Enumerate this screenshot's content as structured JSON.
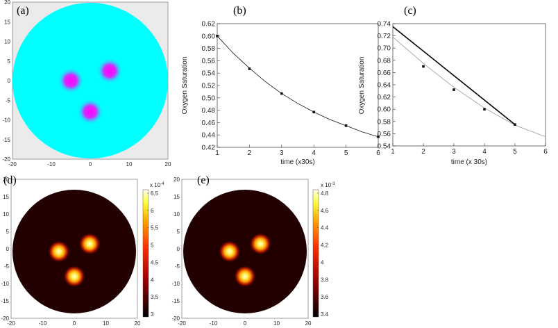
{
  "panels": [
    {
      "label": "(a)",
      "chart_data": {
        "type": "heatmap",
        "colormap": "cool",
        "xlim": [
          -20,
          20
        ],
        "ylim": [
          -20,
          20
        ],
        "xticks": [
          -20,
          -10,
          0,
          10,
          20
        ],
        "yticks": [
          20,
          15,
          10,
          5,
          0,
          -5,
          -10,
          -15,
          -20
        ],
        "domain_radius": 20,
        "inclusions": [
          {
            "x": -5,
            "y": 0
          },
          {
            "x": 5,
            "y": 2.5
          },
          {
            "x": 0,
            "y": -8
          }
        ]
      }
    },
    {
      "label": "(b)",
      "chart_data": {
        "type": "line",
        "xlabel": "time (x30s)",
        "ylabel": "Oxygen Saturation",
        "xlim": [
          1,
          6
        ],
        "ylim": [
          0.42,
          0.62
        ],
        "xticks": [
          1,
          2,
          3,
          4,
          5,
          6
        ],
        "yticks": [
          0.42,
          0.44,
          0.46,
          0.48,
          0.5,
          0.52,
          0.54,
          0.56,
          0.58,
          0.6,
          0.62
        ],
        "ytick_labels": [
          "0.42",
          "0.44",
          "0.46",
          "0.48",
          "0.50",
          "0.52",
          "0.54",
          "0.56",
          "0.58",
          "0.60",
          "0.62"
        ],
        "series": [
          {
            "type": "scatter",
            "x": [
              1,
              2,
              3,
              4,
              5,
              6
            ],
            "y": [
              0.6,
              0.547,
              0.507,
              0.477,
              0.455,
              0.437
            ]
          },
          {
            "type": "line",
            "x": [
              1,
              1.5,
              2,
              2.5,
              3,
              3.5,
              4,
              4.5,
              5,
              5.5,
              6
            ],
            "y": [
              0.6,
              0.572,
              0.548,
              0.526,
              0.507,
              0.491,
              0.477,
              0.465,
              0.455,
              0.445,
              0.437
            ]
          }
        ]
      }
    },
    {
      "label": "(c)",
      "chart_data": {
        "type": "line",
        "xlabel": "time (x 30s)",
        "ylabel": "Oxygen Saturation",
        "xlim": [
          1,
          6
        ],
        "ylim": [
          0.54,
          0.74
        ],
        "xticks": [
          1,
          2,
          3,
          4,
          5,
          6
        ],
        "yticks": [
          0.54,
          0.56,
          0.58,
          0.6,
          0.62,
          0.64,
          0.66,
          0.68,
          0.7,
          0.72,
          0.74
        ],
        "ytick_labels": [
          "0.54",
          "0.56",
          "0.58",
          "0.60",
          "0.62",
          "0.64",
          "0.66",
          "0.68",
          "0.70",
          "0.72",
          "0.74"
        ],
        "series": [
          {
            "type": "line",
            "x": [
              1,
              5
            ],
            "y": [
              0.735,
              0.575
            ],
            "style": "thick"
          },
          {
            "type": "scatter",
            "x": [
              2,
              3,
              4,
              5
            ],
            "y": [
              0.67,
              0.632,
              0.6,
              0.575
            ]
          },
          {
            "type": "line",
            "x": [
              1,
              2,
              3,
              4,
              5,
              6
            ],
            "y": [
              0.718,
              0.675,
              0.636,
              0.602,
              0.574,
              0.555
            ],
            "style": "thin-gray"
          }
        ]
      }
    },
    {
      "label": "(d)",
      "chart_data": {
        "type": "heatmap",
        "colormap": "hot",
        "xlim": [
          -20,
          20
        ],
        "ylim": [
          -20,
          20
        ],
        "xticks": [
          -20,
          -10,
          0,
          10,
          20
        ],
        "yticks": [
          20,
          15,
          10,
          5,
          0,
          -5,
          -10,
          -15,
          -20
        ],
        "colorbar": {
          "multiplier": "x 10",
          "exponent": "-4",
          "ticks": [
            "6.5",
            "6",
            "5.5",
            "5",
            "4.5",
            "4",
            "3.5",
            "3"
          ]
        },
        "inclusions": [
          {
            "x": -5,
            "y": 0
          },
          {
            "x": 5,
            "y": 2.5
          },
          {
            "x": 0,
            "y": -8
          }
        ]
      }
    },
    {
      "label": "(e)",
      "chart_data": {
        "type": "heatmap",
        "colormap": "hot",
        "xlim": [
          -20,
          20
        ],
        "ylim": [
          -20,
          20
        ],
        "xticks": [
          -20,
          -10,
          0,
          10,
          20
        ],
        "yticks": [
          20,
          15,
          10,
          5,
          0,
          -5,
          -10,
          -15,
          -20
        ],
        "colorbar": {
          "multiplier": "x 10",
          "exponent": "-3",
          "ticks": [
            "4.8",
            "4.6",
            "4.4",
            "4.2",
            "4",
            "3.8",
            "3.6",
            "3.4"
          ]
        },
        "inclusions": [
          {
            "x": -5,
            "y": 0
          },
          {
            "x": 5,
            "y": 2.5
          },
          {
            "x": 0,
            "y": -8
          }
        ]
      }
    }
  ]
}
